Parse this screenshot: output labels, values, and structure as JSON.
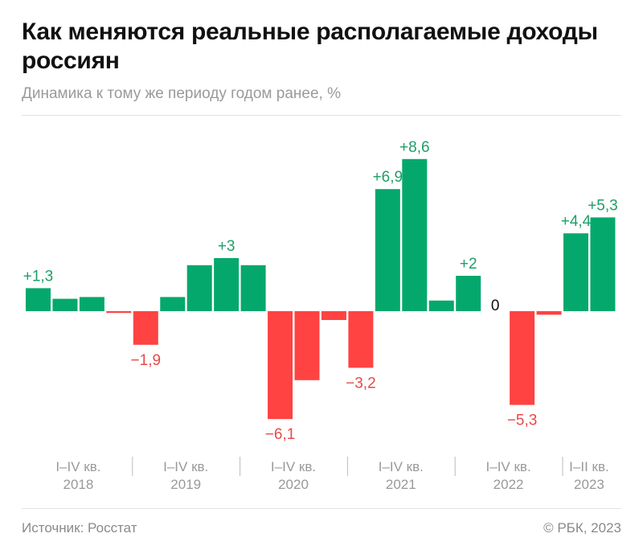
{
  "header": {
    "title": "Как меняются реальные располагаемые доходы россиян",
    "subtitle": "Динамика к тому же периоду годом ранее, %"
  },
  "footer": {
    "source": "Источник: Росстат",
    "copyright": "© РБК, 2023"
  },
  "colors": {
    "positive": "#05a86c",
    "negative": "#ff4242",
    "positive_label": "#1f9e66",
    "negative_label": "#e84848"
  },
  "chart_data": {
    "type": "bar",
    "title": "Как меняются реальные располагаемые доходы россиян",
    "subtitle": "Динамика к тому же периоду годом ранее, %",
    "groups": [
      {
        "period": "I–IV кв.",
        "year": "2018",
        "count": 4
      },
      {
        "period": "I–IV кв.",
        "year": "2019",
        "count": 4
      },
      {
        "period": "I–IV кв.",
        "year": "2020",
        "count": 4
      },
      {
        "period": "I–IV кв.",
        "year": "2021",
        "count": 4
      },
      {
        "period": "I–IV кв.",
        "year": "2022",
        "count": 4
      },
      {
        "period": "I–II кв.",
        "year": "2023",
        "count": 2
      }
    ],
    "values": [
      1.3,
      0.7,
      0.8,
      -0.1,
      -1.9,
      0.8,
      2.6,
      3.0,
      2.6,
      -6.1,
      -3.9,
      -0.5,
      -3.2,
      6.9,
      8.6,
      0.6,
      2.0,
      0.0,
      -5.3,
      -0.2,
      4.4,
      5.3
    ],
    "data_labels": [
      "+1,3",
      "",
      "",
      "",
      "−1,9",
      "",
      "",
      "+3",
      "",
      "−6,1",
      "",
      "",
      "−3,2",
      "+6,9",
      "+8,6",
      "",
      "+2",
      "0",
      "−5,3",
      "",
      "+4,4",
      "+5,3"
    ],
    "grid": false,
    "legend": "none"
  }
}
